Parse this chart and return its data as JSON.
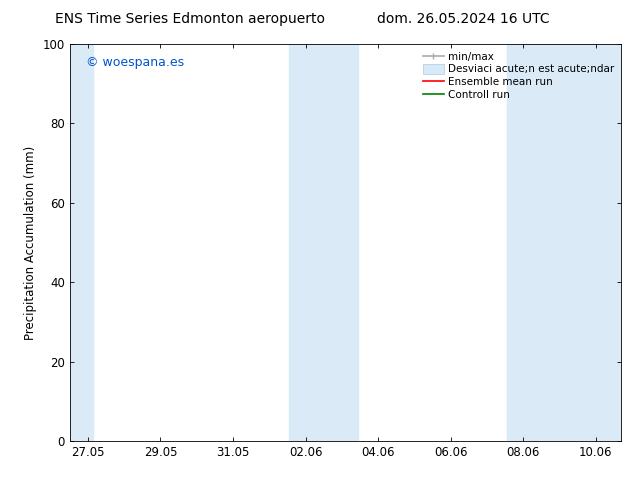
{
  "title_left": "ENS Time Series Edmonton aeropuerto",
  "title_right": "dom. 26.05.2024 16 UTC",
  "ylabel": "Precipitation Accumulation (mm)",
  "ylim": [
    0,
    100
  ],
  "yticks": [
    0,
    20,
    40,
    60,
    80,
    100
  ],
  "xtick_labels": [
    "27.05",
    "29.05",
    "31.05",
    "02.06",
    "04.06",
    "06.06",
    "08.06",
    "10.06"
  ],
  "xtick_positions": [
    0,
    2,
    4,
    6,
    8,
    10,
    12,
    14
  ],
  "xlim": [
    -0.5,
    14.7
  ],
  "watermark": "© woespana.es",
  "watermark_color": "#0055cc",
  "shade_bands": [
    {
      "x_start": -0.5,
      "x_end": 0.15,
      "color": "#daeaf7",
      "alpha": 1.0
    },
    {
      "x_start": 5.55,
      "x_end": 7.45,
      "color": "#daeaf7",
      "alpha": 1.0
    },
    {
      "x_start": 11.55,
      "x_end": 14.7,
      "color": "#daeaf7",
      "alpha": 1.0
    }
  ],
  "bg_color": "#ffffff",
  "title_fontsize": 10,
  "label_fontsize": 8.5,
  "tick_fontsize": 8.5,
  "legend_label1": "min/max",
  "legend_label2": "Desviaci acute;n est acute;ndar",
  "legend_label3": "Ensemble mean run",
  "legend_label4": "Controll run",
  "legend_color1": "#aaaaaa",
  "legend_color2": "#d6eaf8",
  "legend_color3": "red",
  "legend_color4": "green"
}
